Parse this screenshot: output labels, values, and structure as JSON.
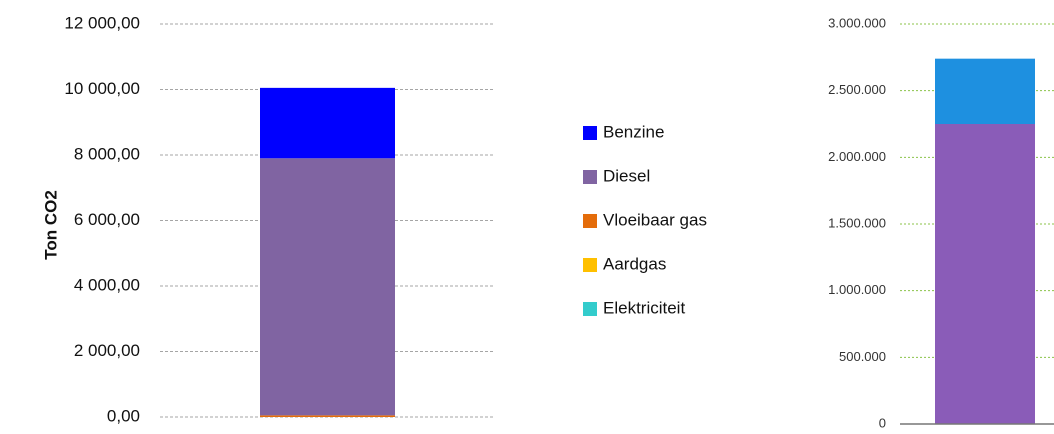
{
  "chart_data": [
    {
      "type": "bar",
      "stacked": true,
      "y_label": "Ton CO2",
      "categories": [
        null
      ],
      "series": [
        {
          "name": "Elektriciteit",
          "color": "#33cccc",
          "values": [
            0
          ]
        },
        {
          "name": "Aardgas",
          "color": "#ffc000",
          "values": [
            0
          ]
        },
        {
          "name": "Vloeibaar gas",
          "color": "#e46c0a",
          "values": [
            50
          ]
        },
        {
          "name": "Diesel",
          "color": "#8064a2",
          "values": [
            7850
          ]
        },
        {
          "name": "Benzine",
          "color": "#0000ff",
          "values": [
            2150
          ]
        }
      ],
      "ylim": [
        0,
        12000
      ],
      "yticks": [
        {
          "value": 0,
          "label": "0,00"
        },
        {
          "value": 2000,
          "label": "2 000,00"
        },
        {
          "value": 4000,
          "label": "4 000,00"
        },
        {
          "value": 6000,
          "label": "6 000,00"
        },
        {
          "value": 8000,
          "label": "8 000,00"
        },
        {
          "value": 10000,
          "label": "10 000,00"
        },
        {
          "value": 12000,
          "label": "12 000,00"
        }
      ],
      "grid": true,
      "legend": "right"
    },
    {
      "type": "bar",
      "stacked": true,
      "categories": [
        null
      ],
      "series": [
        {
          "color": "#8a5cb8",
          "values": [
            2250000
          ]
        },
        {
          "color": "#1e90e0",
          "values": [
            490000
          ]
        }
      ],
      "ylim": [
        0,
        3000000
      ],
      "yticks": [
        {
          "value": 0,
          "label": "0"
        },
        {
          "value": 500000,
          "label": "500.000"
        },
        {
          "value": 1000000,
          "label": "1.000.000"
        },
        {
          "value": 1500000,
          "label": "1.500.000"
        },
        {
          "value": 2000000,
          "label": "2.000.000"
        },
        {
          "value": 2500000,
          "label": "2.500.000"
        },
        {
          "value": 3000000,
          "label": "3.000.000"
        }
      ],
      "grid": true
    }
  ]
}
